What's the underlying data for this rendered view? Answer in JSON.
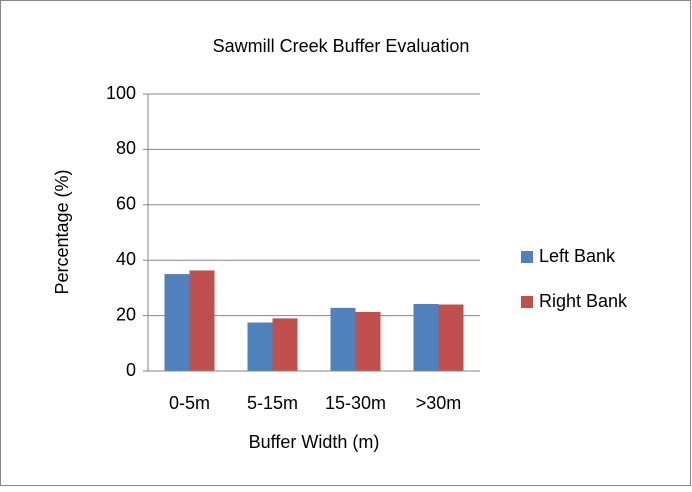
{
  "chart_data": {
    "type": "bar",
    "title": "Sawmill Creek Buffer Evaluation",
    "x_label": "Buffer Width (m)",
    "y_label": "Percentage (%)",
    "categories": [
      "0-5m",
      "5-15m",
      "15-30m",
      ">30m"
    ],
    "series": [
      {
        "name": "Left Bank",
        "color": "#4f81bd",
        "values": [
          35,
          17.5,
          22.8,
          24.2
        ]
      },
      {
        "name": "Right Bank",
        "color": "#c0504d",
        "values": [
          36.3,
          19,
          21.3,
          24
        ]
      }
    ],
    "ylim": [
      0,
      100
    ],
    "yticks": [
      0,
      20,
      40,
      60,
      80,
      100
    ],
    "grid": true,
    "legend": "right"
  }
}
